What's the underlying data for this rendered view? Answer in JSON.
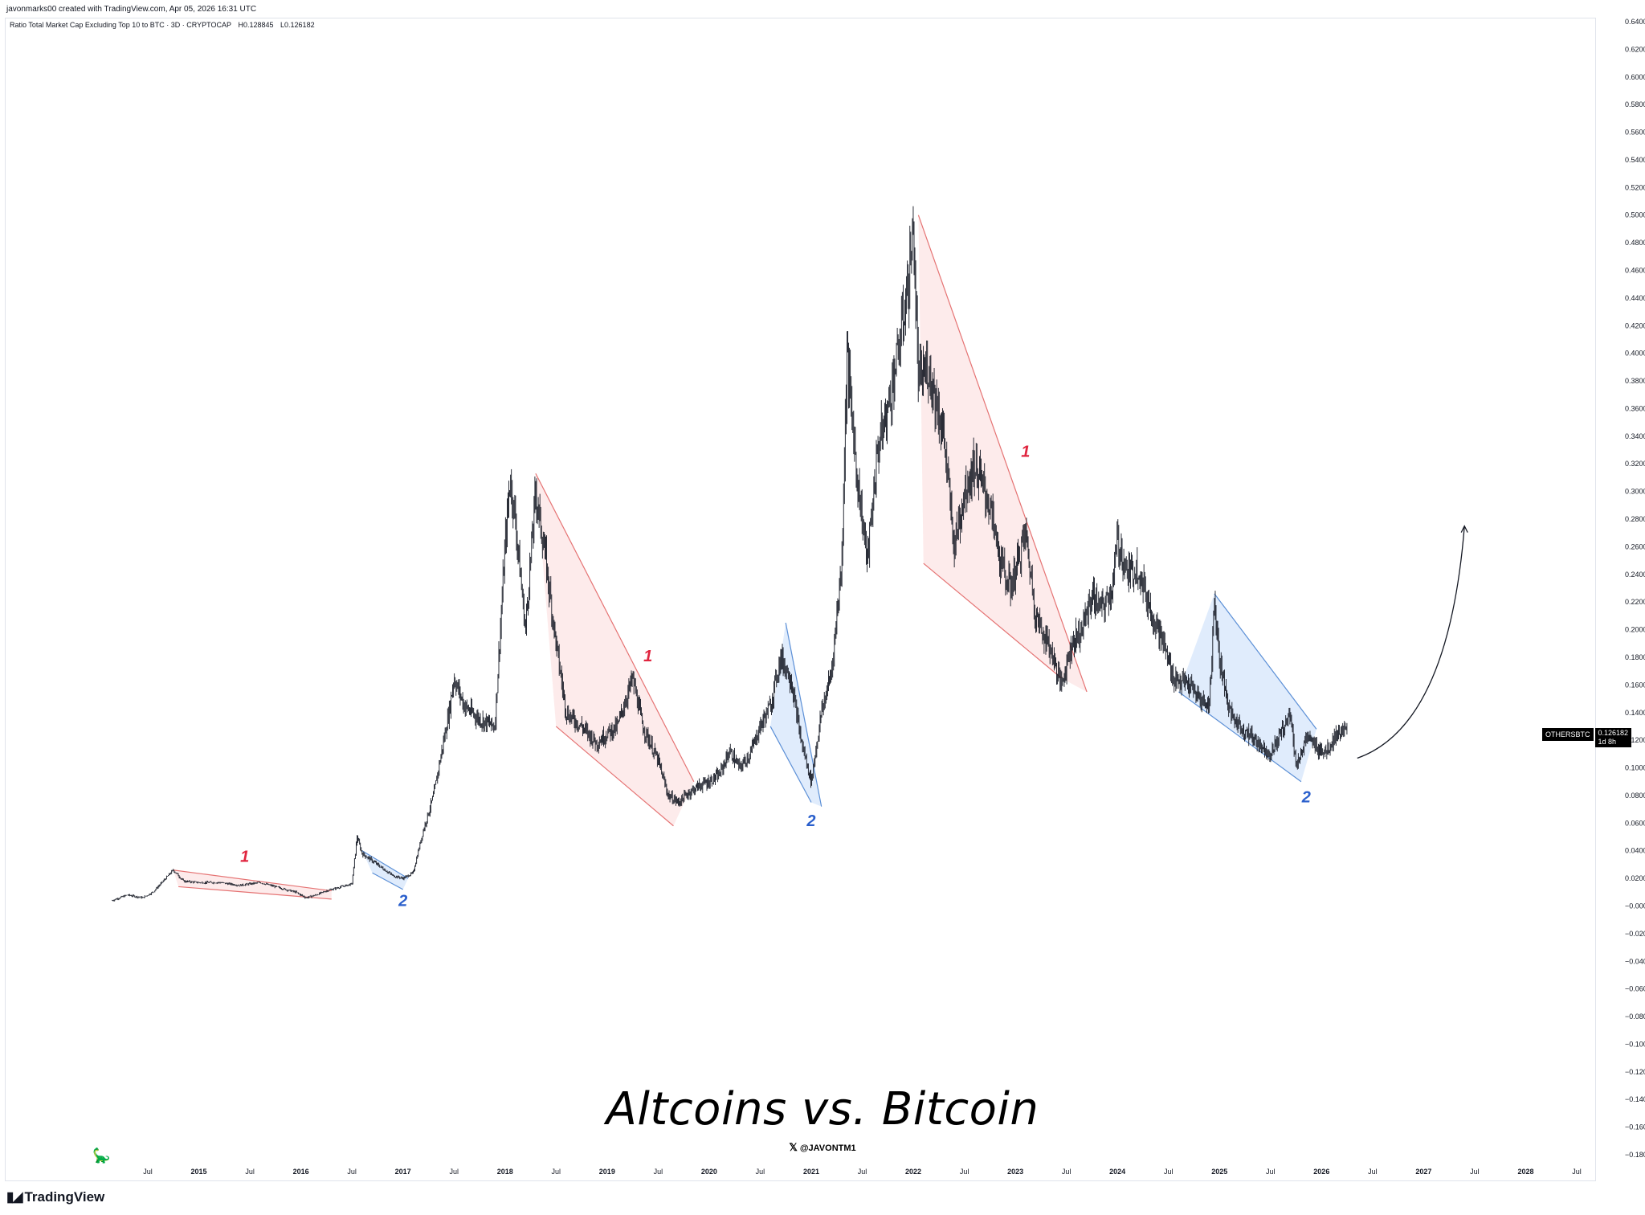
{
  "credit": "javonmarks00 created with TradingView.com, Apr 05, 2026 16:31 UTC",
  "symbol_bar": {
    "title": "Ratio Total Market Cap Excluding Top 10 to BTC · 3D · CRYPTOCAP",
    "high": "H0.128845",
    "low": "L0.126182"
  },
  "headline": "Altcoins vs. Bitcoin",
  "handle": "@JAVONTM1",
  "brand": "TradingView",
  "price_tag": {
    "symbol": "OTHERSBTC",
    "price": "0.126182",
    "countdown": "1d 8h"
  },
  "colors": {
    "bearish_fill": "#fde8e8",
    "bearish_line": "#e57373",
    "bearish_label": "#e0253f",
    "bullish_fill": "#dbe9fb",
    "bullish_line": "#5b8fd6",
    "bullish_label": "#2a5fcc",
    "candles": "#131722",
    "grid_border": "#e0e3eb"
  },
  "chart_data": {
    "type": "line",
    "title": "Ratio Total Market Cap Excluding Top 10 to BTC · 3D · CRYPTOCAP",
    "series_style": "candlestick",
    "ylim": [
      -0.18,
      0.64
    ],
    "y_ticks": [
      "0.640000",
      "0.620000",
      "0.600000",
      "0.580000",
      "0.560000",
      "0.540000",
      "0.520000",
      "0.500000",
      "0.480000",
      "0.460000",
      "0.440000",
      "0.420000",
      "0.400000",
      "0.380000",
      "0.360000",
      "0.340000",
      "0.320000",
      "0.300000",
      "0.280000",
      "0.260000",
      "0.240000",
      "0.220000",
      "0.200000",
      "0.180000",
      "0.160000",
      "0.140000",
      "0.120000",
      "0.100000",
      "0.080000",
      "0.060000",
      "0.040000",
      "0.020000",
      "−0.000000",
      "−0.020000",
      "−0.040000",
      "−0.060000",
      "−0.080000",
      "−0.100000",
      "−0.120000",
      "−0.140000",
      "−0.160000",
      "−0.180000"
    ],
    "x_ticks": [
      {
        "t": 2014.5,
        "label": "Jul"
      },
      {
        "t": 2015.0,
        "label": "2015"
      },
      {
        "t": 2015.5,
        "label": "Jul"
      },
      {
        "t": 2016.0,
        "label": "2016"
      },
      {
        "t": 2016.5,
        "label": "Jul"
      },
      {
        "t": 2017.0,
        "label": "2017"
      },
      {
        "t": 2017.5,
        "label": "Jul"
      },
      {
        "t": 2018.0,
        "label": "2018"
      },
      {
        "t": 2018.5,
        "label": "Jul"
      },
      {
        "t": 2019.0,
        "label": "2019"
      },
      {
        "t": 2019.5,
        "label": "Jul"
      },
      {
        "t": 2020.0,
        "label": "2020"
      },
      {
        "t": 2020.5,
        "label": "Jul"
      },
      {
        "t": 2021.0,
        "label": "2021"
      },
      {
        "t": 2021.5,
        "label": "Jul"
      },
      {
        "t": 2022.0,
        "label": "2022"
      },
      {
        "t": 2022.5,
        "label": "Jul"
      },
      {
        "t": 2023.0,
        "label": "2023"
      },
      {
        "t": 2023.5,
        "label": "Jul"
      },
      {
        "t": 2024.0,
        "label": "2024"
      },
      {
        "t": 2024.5,
        "label": "Jul"
      },
      {
        "t": 2025.0,
        "label": "2025"
      },
      {
        "t": 2025.5,
        "label": "Jul"
      },
      {
        "t": 2026.0,
        "label": "2026"
      },
      {
        "t": 2026.5,
        "label": "Jul"
      },
      {
        "t": 2027.0,
        "label": "2027"
      },
      {
        "t": 2027.5,
        "label": "Jul"
      },
      {
        "t": 2028.0,
        "label": "2028"
      },
      {
        "t": 2028.5,
        "label": "Jul"
      }
    ],
    "series": [
      {
        "points": [
          [
            2014.15,
            0.004
          ],
          [
            2014.3,
            0.008
          ],
          [
            2014.45,
            0.006
          ],
          [
            2014.55,
            0.01
          ],
          [
            2014.65,
            0.018
          ],
          [
            2014.75,
            0.026
          ],
          [
            2014.85,
            0.018
          ],
          [
            2015.0,
            0.017
          ],
          [
            2015.2,
            0.017
          ],
          [
            2015.4,
            0.015
          ],
          [
            2015.6,
            0.017
          ],
          [
            2015.8,
            0.013
          ],
          [
            2015.95,
            0.01
          ],
          [
            2016.05,
            0.006
          ],
          [
            2016.15,
            0.008
          ],
          [
            2016.25,
            0.011
          ],
          [
            2016.35,
            0.013
          ],
          [
            2016.45,
            0.015
          ],
          [
            2016.5,
            0.016
          ],
          [
            2016.55,
            0.05
          ],
          [
            2016.6,
            0.038
          ],
          [
            2016.75,
            0.03
          ],
          [
            2016.9,
            0.022
          ],
          [
            2017.0,
            0.02
          ],
          [
            2017.1,
            0.024
          ],
          [
            2017.2,
            0.055
          ],
          [
            2017.3,
            0.08
          ],
          [
            2017.35,
            0.1
          ],
          [
            2017.45,
            0.14
          ],
          [
            2017.5,
            0.165
          ],
          [
            2017.6,
            0.145
          ],
          [
            2017.75,
            0.135
          ],
          [
            2017.9,
            0.13
          ],
          [
            2018.0,
            0.26
          ],
          [
            2018.05,
            0.31
          ],
          [
            2018.1,
            0.28
          ],
          [
            2018.2,
            0.2
          ],
          [
            2018.3,
            0.3
          ],
          [
            2018.4,
            0.25
          ],
          [
            2018.5,
            0.19
          ],
          [
            2018.6,
            0.14
          ],
          [
            2018.75,
            0.13
          ],
          [
            2018.9,
            0.118
          ],
          [
            2019.0,
            0.125
          ],
          [
            2019.1,
            0.13
          ],
          [
            2019.25,
            0.165
          ],
          [
            2019.35,
            0.13
          ],
          [
            2019.5,
            0.105
          ],
          [
            2019.6,
            0.08
          ],
          [
            2019.7,
            0.075
          ],
          [
            2019.8,
            0.082
          ],
          [
            2019.9,
            0.087
          ],
          [
            2020.0,
            0.09
          ],
          [
            2020.1,
            0.095
          ],
          [
            2020.2,
            0.112
          ],
          [
            2020.3,
            0.1
          ],
          [
            2020.4,
            0.11
          ],
          [
            2020.5,
            0.13
          ],
          [
            2020.6,
            0.145
          ],
          [
            2020.7,
            0.18
          ],
          [
            2020.8,
            0.165
          ],
          [
            2020.9,
            0.12
          ],
          [
            2021.0,
            0.09
          ],
          [
            2021.1,
            0.14
          ],
          [
            2021.2,
            0.17
          ],
          [
            2021.3,
            0.25
          ],
          [
            2021.35,
            0.4
          ],
          [
            2021.45,
            0.31
          ],
          [
            2021.55,
            0.25
          ],
          [
            2021.65,
            0.33
          ],
          [
            2021.75,
            0.36
          ],
          [
            2021.85,
            0.4
          ],
          [
            2021.95,
            0.45
          ],
          [
            2022.0,
            0.49
          ],
          [
            2022.05,
            0.38
          ],
          [
            2022.15,
            0.39
          ],
          [
            2022.3,
            0.34
          ],
          [
            2022.4,
            0.26
          ],
          [
            2022.5,
            0.3
          ],
          [
            2022.6,
            0.32
          ],
          [
            2022.75,
            0.29
          ],
          [
            2022.85,
            0.25
          ],
          [
            2022.95,
            0.23
          ],
          [
            2023.1,
            0.27
          ],
          [
            2023.2,
            0.21
          ],
          [
            2023.35,
            0.185
          ],
          [
            2023.45,
            0.16
          ],
          [
            2023.55,
            0.19
          ],
          [
            2023.65,
            0.2
          ],
          [
            2023.75,
            0.225
          ],
          [
            2023.85,
            0.215
          ],
          [
            2023.95,
            0.23
          ],
          [
            2024.0,
            0.265
          ],
          [
            2024.1,
            0.24
          ],
          [
            2024.2,
            0.245
          ],
          [
            2024.3,
            0.22
          ],
          [
            2024.45,
            0.19
          ],
          [
            2024.55,
            0.165
          ],
          [
            2024.7,
            0.16
          ],
          [
            2024.8,
            0.15
          ],
          [
            2024.9,
            0.145
          ],
          [
            2024.95,
            0.22
          ],
          [
            2025.0,
            0.18
          ],
          [
            2025.1,
            0.14
          ],
          [
            2025.2,
            0.13
          ],
          [
            2025.35,
            0.12
          ],
          [
            2025.5,
            0.11
          ],
          [
            2025.6,
            0.125
          ],
          [
            2025.7,
            0.14
          ],
          [
            2025.75,
            0.1
          ],
          [
            2025.85,
            0.122
          ],
          [
            2025.95,
            0.115
          ],
          [
            2026.05,
            0.112
          ],
          [
            2026.15,
            0.125
          ],
          [
            2026.25,
            0.126
          ]
        ]
      }
    ],
    "annotations": [
      {
        "label": "1",
        "kind": "bearish",
        "channel": [
          [
            2014.75,
            0.026
          ],
          [
            2016.3,
            0.011
          ],
          [
            2016.3,
            0.005
          ],
          [
            2014.8,
            0.014
          ]
        ],
        "label_at": [
          2015.45,
          0.032
        ]
      },
      {
        "label": "2",
        "kind": "bullish",
        "channel": [
          [
            2016.6,
            0.04
          ],
          [
            2017.05,
            0.02
          ],
          [
            2017.0,
            0.012
          ],
          [
            2016.7,
            0.024
          ]
        ],
        "label_at": [
          2017.0,
          0.0
        ]
      },
      {
        "label": "1",
        "kind": "bearish",
        "channel": [
          [
            2018.3,
            0.313
          ],
          [
            2019.85,
            0.09
          ],
          [
            2019.65,
            0.058
          ],
          [
            2018.5,
            0.13
          ]
        ],
        "label_at": [
          2019.4,
          0.177
        ]
      },
      {
        "label": "2",
        "kind": "bullish",
        "channel": [
          [
            2020.75,
            0.205
          ],
          [
            2021.1,
            0.072
          ],
          [
            2021.0,
            0.075
          ],
          [
            2020.6,
            0.13
          ]
        ],
        "label_at": [
          2021.0,
          0.058
        ]
      },
      {
        "label": "1",
        "kind": "bearish",
        "channel": [
          [
            2022.05,
            0.5
          ],
          [
            2023.7,
            0.155
          ],
          [
            2023.45,
            0.165
          ],
          [
            2022.1,
            0.248
          ]
        ],
        "label_at": [
          2023.1,
          0.325
        ]
      },
      {
        "label": "2",
        "kind": "bullish",
        "channel": [
          [
            2024.95,
            0.226
          ],
          [
            2025.95,
            0.128
          ],
          [
            2025.8,
            0.09
          ],
          [
            2024.6,
            0.155
          ]
        ],
        "label_at": [
          2025.85,
          0.075
        ]
      }
    ],
    "projection": {
      "from": [
        2026.35,
        0.107
      ],
      "to": [
        2027.4,
        0.275
      ]
    }
  }
}
